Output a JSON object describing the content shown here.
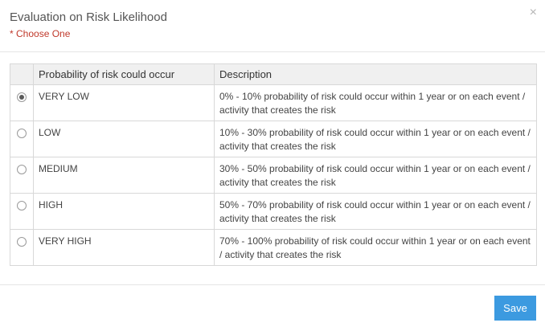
{
  "dialog": {
    "title": "Evaluation on Risk Likelihood",
    "subtitle": "* Choose One",
    "close_symbol": "×",
    "close_icon": "close-icon"
  },
  "table": {
    "columns": [
      "",
      "Probability of risk could occur",
      "Description"
    ],
    "rows": [
      {
        "level": "VERY LOW",
        "description": "0% - 10% probability of risk could occur within 1 year or on each event / activity that creates the risk",
        "selected": true
      },
      {
        "level": "LOW",
        "description": "10% - 30% probability of risk could occur within 1 year or on each event / activity that creates the risk",
        "selected": false
      },
      {
        "level": "MEDIUM",
        "description": "30% - 50% probability of risk could occur within 1 year or on each event / activity that creates the risk",
        "selected": false
      },
      {
        "level": "HIGH",
        "description": "50% - 70% probability of risk could occur within 1 year or on each event / activity that creates the risk",
        "selected": false
      },
      {
        "level": "VERY HIGH",
        "description": "70% - 100% probability of risk could occur within 1 year or on each event / activity that creates the risk",
        "selected": false
      }
    ]
  },
  "footer": {
    "save_label": "Save"
  },
  "colors": {
    "subtitle": "#c0392b",
    "save_button": "#3c9ae0",
    "header_bg": "#f0f0f0",
    "border": "#d8d8d8"
  }
}
